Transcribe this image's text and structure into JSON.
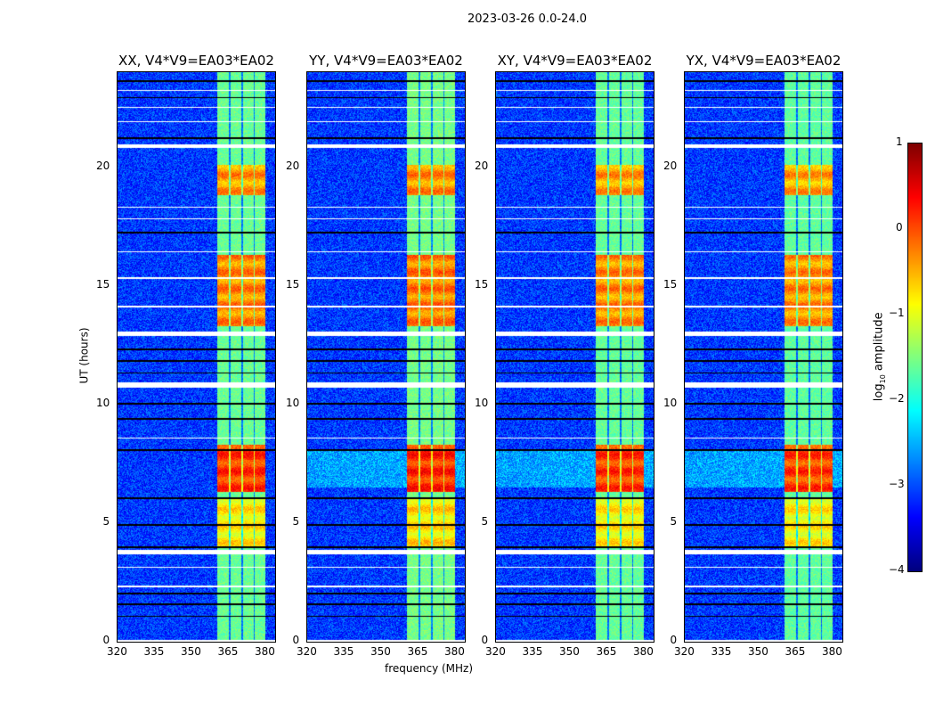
{
  "figure_title": "2023-03-26 0.0-24.0",
  "chart_data": {
    "type": "heatmap",
    "title": "2023-03-26 0.0-24.0",
    "xlabel": "frequency (MHz)",
    "ylabel": "UT (hours)",
    "xlim": [
      320,
      384
    ],
    "ylim": [
      0,
      24
    ],
    "xticks": [
      320,
      335,
      350,
      365,
      380
    ],
    "yticks": [
      0,
      5,
      10,
      15,
      20
    ],
    "panels": [
      {
        "title": "XX, V4*V9=EA03*EA02",
        "gain": 1.0
      },
      {
        "title": "YY, V4*V9=EA03*EA02",
        "gain": 1.15
      },
      {
        "title": "XY, V4*V9=EA03*EA02",
        "gain": 0.95
      },
      {
        "title": "YX, V4*V9=EA03*EA02",
        "gain": 0.9
      }
    ],
    "signal_band_mhz": [
      360.5,
      380
    ],
    "subband_gaps_mhz": [
      365.5,
      370.5,
      375.5
    ],
    "background_log10_amplitude": -3.1,
    "band_baseline_log10_amplitude": -1.6,
    "bright_periods_ut": [
      [
        6.3,
        8.3
      ],
      [
        13.3,
        16.3
      ],
      [
        18.8,
        20.1
      ],
      [
        4.0,
        6.0
      ]
    ],
    "bright_levels": [
      0.1,
      -0.3,
      -0.4,
      -0.8
    ],
    "flagged_white_ut": [
      [
        0.0,
        0.08
      ],
      [
        3.68,
        3.85
      ],
      [
        10.72,
        10.92
      ],
      [
        12.9,
        13.07
      ],
      [
        20.8,
        20.95
      ],
      [
        2.3,
        2.35
      ],
      [
        3.1,
        3.15
      ],
      [
        8.55,
        8.6
      ],
      [
        14.1,
        14.15
      ],
      [
        15.3,
        15.36
      ],
      [
        16.4,
        16.45
      ],
      [
        17.8,
        17.85
      ],
      [
        18.3,
        18.34
      ],
      [
        21.9,
        21.95
      ],
      [
        22.5,
        22.55
      ],
      [
        23.2,
        23.25
      ]
    ],
    "flagged_black_ut": [
      [
        1.05,
        1.1
      ],
      [
        1.55,
        1.6
      ],
      [
        2.0,
        2.05
      ],
      [
        3.95,
        4.02
      ],
      [
        4.9,
        4.95
      ],
      [
        6.0,
        6.07
      ],
      [
        8.05,
        8.1
      ],
      [
        9.35,
        9.42
      ],
      [
        10.0,
        10.05
      ],
      [
        11.3,
        11.35
      ],
      [
        11.8,
        11.85
      ],
      [
        12.3,
        12.35
      ],
      [
        17.2,
        17.26
      ],
      [
        21.2,
        21.25
      ],
      [
        22.9,
        22.95
      ],
      [
        23.6,
        23.65
      ]
    ],
    "colorbar": {
      "label": "log10 amplitude",
      "range": [
        -4,
        1
      ],
      "ticks": [
        1,
        0,
        -1,
        -2,
        -3,
        -4
      ],
      "colormap": "jet"
    }
  }
}
